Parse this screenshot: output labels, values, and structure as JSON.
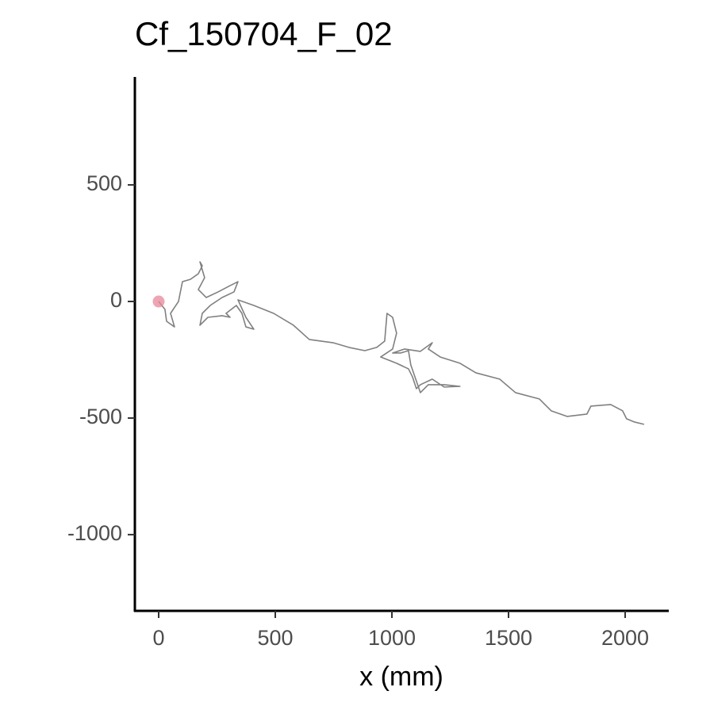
{
  "chart_data": {
    "type": "line",
    "title": "Cf_150704_F_02",
    "x_label": "x (mm)",
    "series": [
      {
        "color": "#808080",
        "x": [
          0,
          27,
          34,
          68,
          51,
          85,
          102,
          136,
          170,
          187,
          177,
          197,
          170,
          204,
          255,
          306,
          340,
          323,
          272,
          221,
          187,
          177,
          211,
          272,
          306,
          289,
          333,
          357,
          374,
          408,
          374,
          340,
          408,
          493,
          578,
          646,
          748,
          816,
          884,
          935,
          969,
          979,
          1003,
          1020,
          1003,
          952,
          1020,
          1071,
          1088,
          1105,
          1122,
          1173,
          1224,
          1292,
          1224,
          1156,
          1122,
          1081,
          1071,
          1037,
          1003,
          1054,
          1122,
          1173,
          1156,
          1207,
          1292,
          1360,
          1462,
          1530,
          1632,
          1683,
          1751,
          1836,
          1853,
          1938,
          1989,
          2006,
          2040,
          2081
        ],
        "values": [
          0,
          -34,
          -85,
          -109,
          -51,
          0,
          85,
          95,
          119,
          153,
          170,
          102,
          51,
          17,
          41,
          68,
          85,
          41,
          17,
          -17,
          -51,
          -102,
          -68,
          -61,
          -68,
          -51,
          -17,
          -51,
          -109,
          -119,
          -68,
          7,
          -17,
          -51,
          -102,
          -163,
          -177,
          -197,
          -211,
          -197,
          -170,
          -51,
          -68,
          -136,
          -204,
          -238,
          -265,
          -289,
          -323,
          -374,
          -357,
          -333,
          -367,
          -364,
          -357,
          -357,
          -391,
          -272,
          -211,
          -221,
          -221,
          -204,
          -214,
          -177,
          -204,
          -238,
          -265,
          -306,
          -333,
          -391,
          -418,
          -469,
          -493,
          -483,
          -449,
          -442,
          -469,
          -503,
          -517,
          -527
        ]
      }
    ],
    "start_point": {
      "x": 0,
      "y": 0,
      "color": "#e8879a"
    },
    "xlim": [
      -102,
      2187
    ],
    "ylim": [
      -1327,
      963
    ],
    "xticks": [
      0,
      500,
      1000,
      1500,
      2000
    ],
    "yticks": [
      -1000,
      -500,
      0,
      500
    ]
  }
}
